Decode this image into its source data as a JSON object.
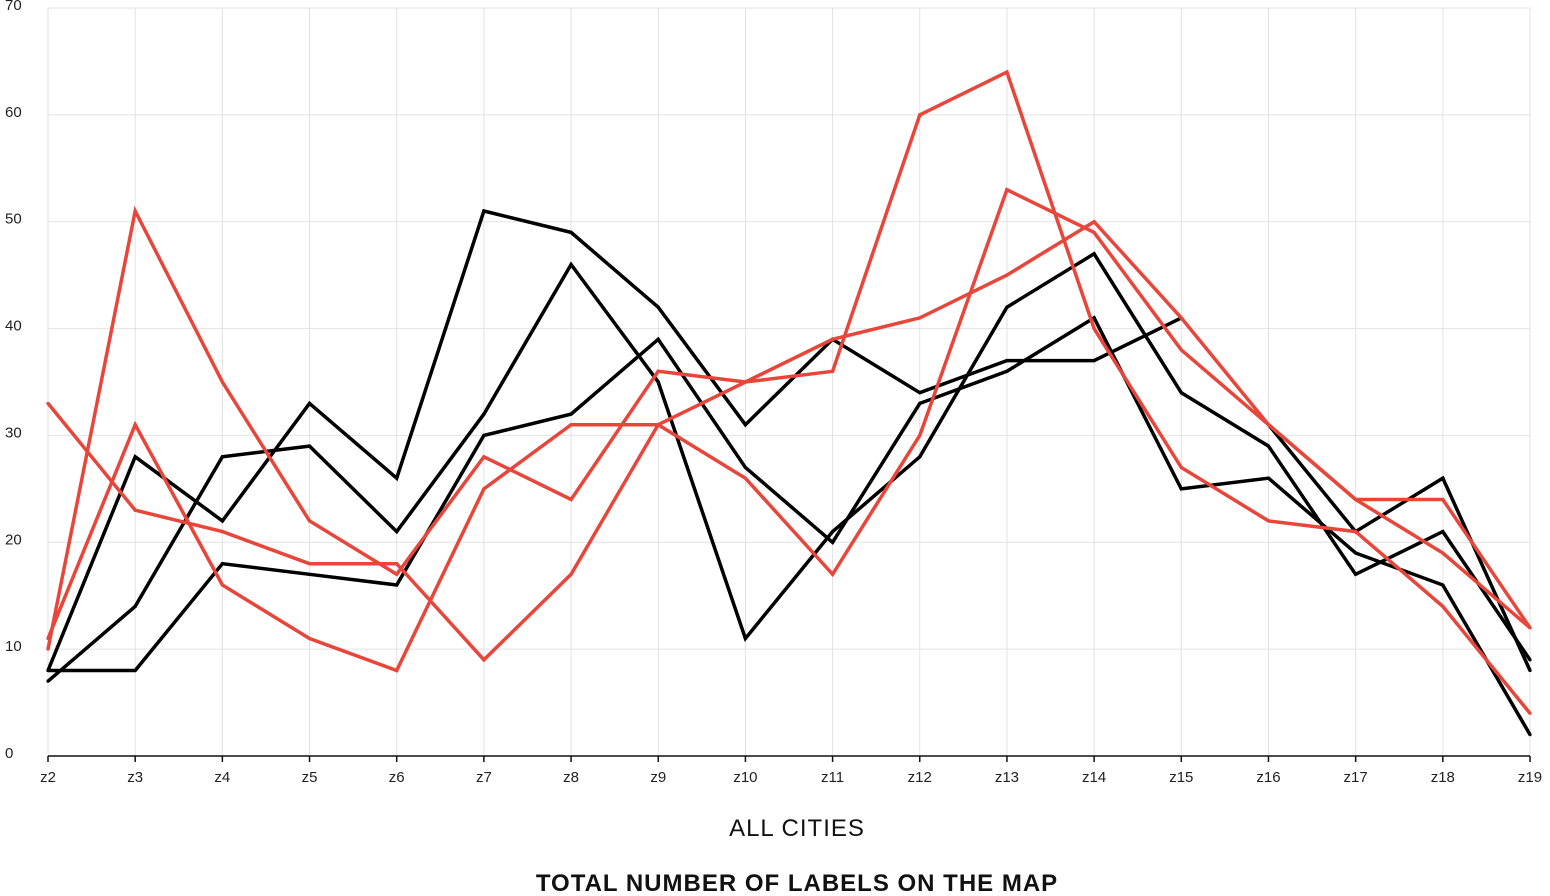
{
  "chart_data": {
    "type": "line",
    "title": "TOTAL NUMBER OF LABELS ON THE MAP",
    "xlabel": "ALL CITIES",
    "ylabel": "",
    "ylim": [
      0,
      70
    ],
    "yticks": [
      "0",
      "10",
      "20",
      "30",
      "40",
      "50",
      "60",
      "70"
    ],
    "grid": true,
    "categories": [
      "z2",
      "z3",
      "z4",
      "z5",
      "z6",
      "z7",
      "z8",
      "z9",
      "z10",
      "z11",
      "z12",
      "z13",
      "z14",
      "z15",
      "z16",
      "z17",
      "z18",
      "z19"
    ],
    "series": [
      {
        "color": "#000000",
        "values": [
          8,
          28,
          22,
          33,
          26,
          51,
          49,
          42,
          31,
          39,
          34,
          37,
          37,
          41,
          null,
          null,
          null,
          null
        ]
      },
      {
        "color": "#000000",
        "values": [
          7,
          14,
          28,
          29,
          21,
          32,
          46,
          35,
          11,
          21,
          28,
          42,
          47,
          34,
          29,
          17,
          21,
          9
        ]
      },
      {
        "color": "#000000",
        "values": [
          8,
          8,
          18,
          17,
          16,
          30,
          32,
          39,
          27,
          20,
          33,
          36,
          41,
          25,
          26,
          19,
          16,
          2
        ]
      },
      {
        "color": "#000000",
        "values": [
          null,
          null,
          null,
          null,
          null,
          null,
          null,
          null,
          null,
          null,
          null,
          null,
          null,
          null,
          31,
          21,
          26,
          8
        ]
      },
      {
        "color": "#e8463a",
        "values": [
          33,
          23,
          21,
          18,
          18,
          9,
          17,
          31,
          35,
          39,
          41,
          45,
          50,
          41,
          31,
          24,
          24,
          12
        ]
      },
      {
        "color": "#e8463a",
        "values": [
          10,
          51,
          35,
          22,
          17,
          28,
          24,
          36,
          35,
          36,
          60,
          64,
          40,
          27,
          22,
          21,
          14,
          4
        ]
      },
      {
        "color": "#e8463a",
        "values": [
          11,
          31,
          16,
          11,
          8,
          25,
          31,
          31,
          26,
          17,
          30,
          53,
          49,
          38,
          31,
          24,
          19,
          12
        ]
      }
    ]
  }
}
